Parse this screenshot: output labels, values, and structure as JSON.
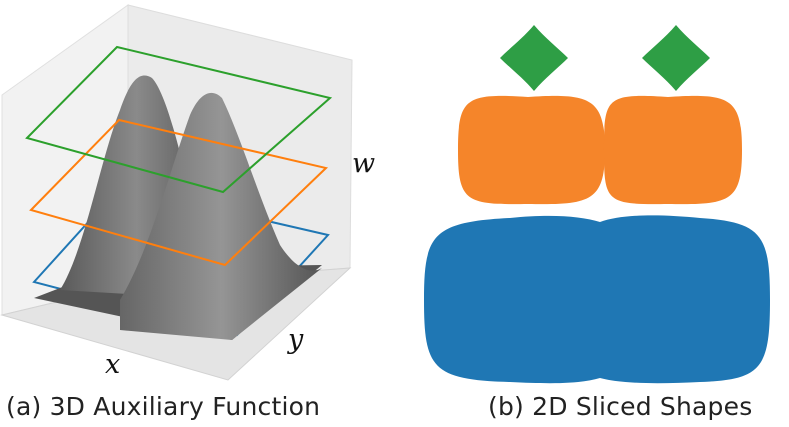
{
  "panel_a": {
    "caption": "(a) 3D Auxiliary Function",
    "axes": {
      "x_label": "x",
      "y_label": "y",
      "w_label": "w"
    },
    "slice_planes": [
      {
        "level": "top",
        "color": "#2ca02c"
      },
      {
        "level": "middle",
        "color": "#ff7f0e"
      },
      {
        "level": "bottom",
        "color": "#1f77b4"
      }
    ],
    "surface_color": "#6a6a6a"
  },
  "panel_b": {
    "caption": "(b) 2D Sliced Shapes",
    "shapes": [
      {
        "name": "top-slice",
        "color": "#2e9e45",
        "count": 2
      },
      {
        "name": "middle-slice",
        "color": "#f5852a",
        "count": 2
      },
      {
        "name": "bottom-slice",
        "color": "#1f77b4",
        "count": 1
      }
    ]
  }
}
